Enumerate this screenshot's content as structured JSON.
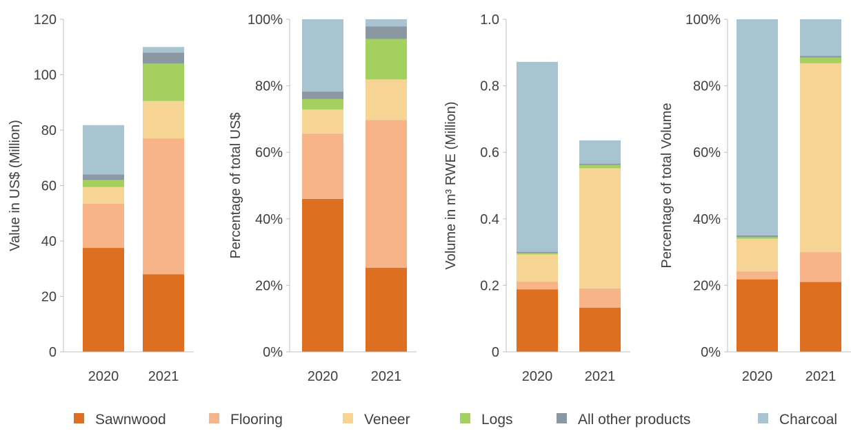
{
  "legend": {
    "sawnwood": {
      "label": "Sawnwood",
      "color": "#de6e20"
    },
    "flooring": {
      "label": "Flooring",
      "color": "#f6b488"
    },
    "veneer": {
      "label": "Veneer",
      "color": "#f6d594"
    },
    "logs": {
      "label": "Logs",
      "color": "#a3d05f"
    },
    "other": {
      "label": "All other products",
      "color": "#8b98a3"
    },
    "charcoal": {
      "label": "Charcoal",
      "color": "#a9c4d1"
    }
  },
  "chart_data": [
    {
      "type": "bar",
      "stacked": true,
      "categories": [
        "2020",
        "2021"
      ],
      "ylabel": "Value in US$ (Million)",
      "ylim": [
        0,
        120
      ],
      "yticks": [
        "0",
        "20",
        "40",
        "60",
        "80",
        "100",
        "120"
      ],
      "series": [
        {
          "name": "Sawnwood",
          "values": [
            37.5,
            28
          ]
        },
        {
          "name": "Flooring",
          "values": [
            16,
            49
          ]
        },
        {
          "name": "Veneer",
          "values": [
            6,
            13.5
          ]
        },
        {
          "name": "Logs",
          "values": [
            2.5,
            13.5
          ]
        },
        {
          "name": "All other products",
          "values": [
            2,
            4
          ]
        },
        {
          "name": "Charcoal",
          "values": [
            17.8,
            2
          ]
        }
      ]
    },
    {
      "type": "bar",
      "stacked": true,
      "categories": [
        "2020",
        "2021"
      ],
      "ylabel": "Percentage of total US$",
      "ylim": [
        0,
        100
      ],
      "yticks": [
        "0%",
        "20%",
        "40%",
        "60%",
        "80%",
        "100%"
      ],
      "series": [
        {
          "name": "Sawnwood",
          "values": [
            46,
            25.3
          ]
        },
        {
          "name": "Flooring",
          "values": [
            19.6,
            44.4
          ]
        },
        {
          "name": "Veneer",
          "values": [
            7.3,
            12.2
          ]
        },
        {
          "name": "Logs",
          "values": [
            3.1,
            12.2
          ]
        },
        {
          "name": "All other products",
          "values": [
            2.3,
            3.8
          ]
        },
        {
          "name": "Charcoal",
          "values": [
            21.7,
            2.1
          ]
        }
      ]
    },
    {
      "type": "bar",
      "stacked": true,
      "categories": [
        "2020",
        "2021"
      ],
      "ylabel": "Volume in m³ RWE (Million)",
      "ylim": [
        0,
        1.0
      ],
      "yticks": [
        "0",
        "0.2",
        "0.4",
        "0.6",
        "0.8",
        "1.0"
      ],
      "series": [
        {
          "name": "Sawnwood",
          "values": [
            0.188,
            0.133
          ]
        },
        {
          "name": "Flooring",
          "values": [
            0.023,
            0.058
          ]
        },
        {
          "name": "Veneer",
          "values": [
            0.082,
            0.361
          ]
        },
        {
          "name": "Logs",
          "values": [
            0.004,
            0.01
          ]
        },
        {
          "name": "All other products",
          "values": [
            0.004,
            0.004
          ]
        },
        {
          "name": "Charcoal",
          "values": [
            0.571,
            0.07
          ]
        }
      ]
    },
    {
      "type": "bar",
      "stacked": true,
      "categories": [
        "2020",
        "2021"
      ],
      "ylabel": "Percentage of total Volume",
      "ylim": [
        0,
        100
      ],
      "yticks": [
        "0%",
        "20%",
        "40%",
        "60%",
        "80%",
        "100%"
      ],
      "series": [
        {
          "name": "Sawnwood",
          "values": [
            21.8,
            21
          ]
        },
        {
          "name": "Flooring",
          "values": [
            2.4,
            9
          ]
        },
        {
          "name": "Veneer",
          "values": [
            9.8,
            56.8
          ]
        },
        {
          "name": "Logs",
          "values": [
            0.5,
            1.7
          ]
        },
        {
          "name": "All other products",
          "values": [
            0.5,
            0.5
          ]
        },
        {
          "name": "Charcoal",
          "values": [
            65,
            11
          ]
        }
      ]
    }
  ]
}
